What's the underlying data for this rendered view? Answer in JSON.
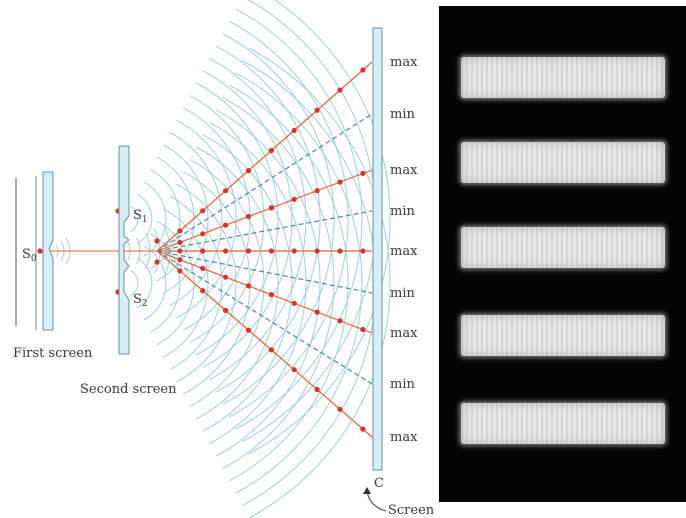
{
  "labels": {
    "s0": "S",
    "s0_sub": "0",
    "s1": "S",
    "s1_sub": "1",
    "s2": "S",
    "s2_sub": "2",
    "first_screen": "First screen",
    "second_screen": "Second screen",
    "c": "C",
    "screen": "Screen"
  },
  "fringe_labels": [
    "max",
    "min",
    "max",
    "min",
    "max",
    "min",
    "max",
    "min",
    "max"
  ],
  "bright_band_count": 5,
  "colors": {
    "wavefront": "#9fd0dc",
    "barrier_fill": "#d6eef5",
    "barrier_stroke": "#6b8fa0",
    "max_line": "#e5623a",
    "min_line": "#4a8aa6",
    "dot": "#d9342b",
    "photo_bg": "#050505",
    "fringe": "#e8e8e8"
  }
}
